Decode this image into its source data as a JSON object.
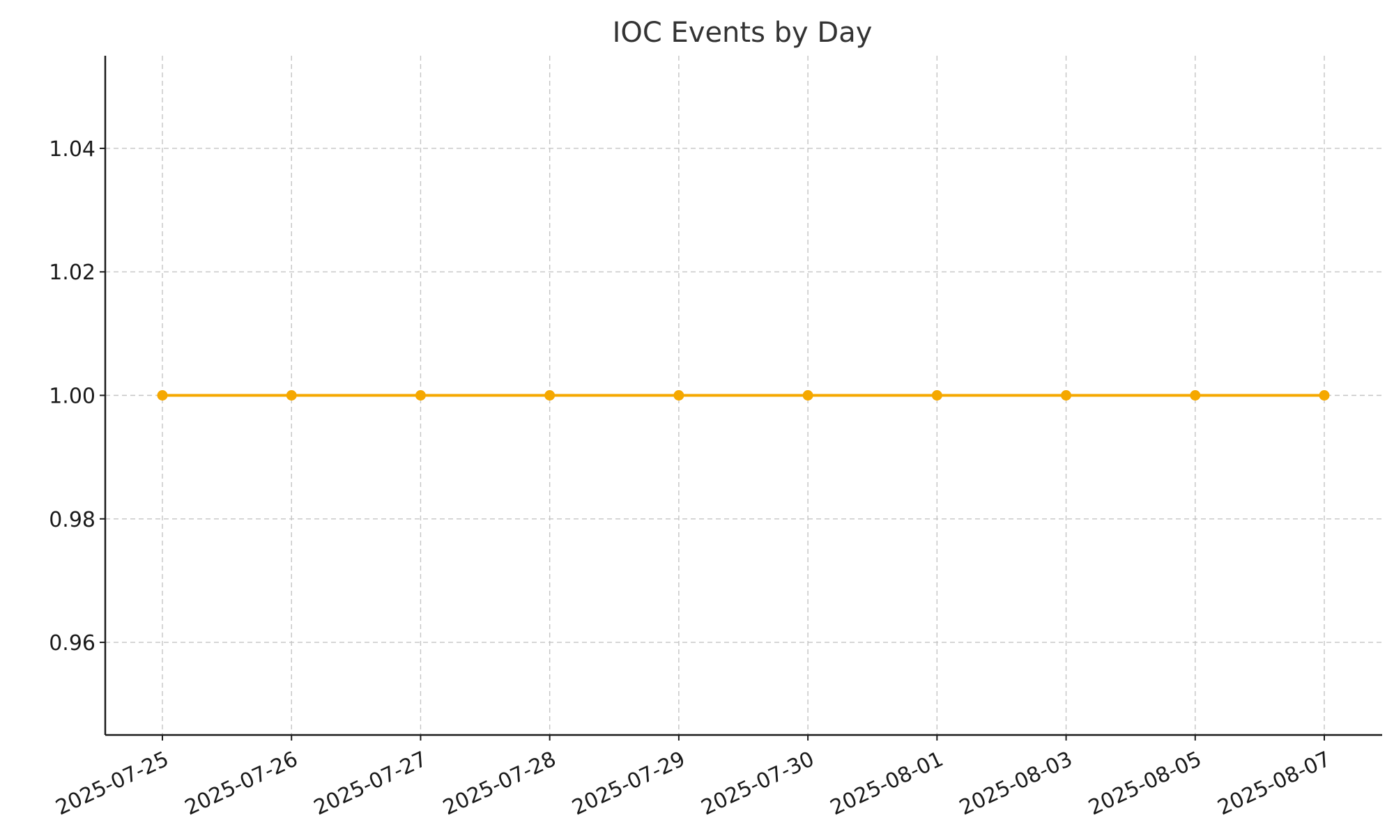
{
  "chart_data": {
    "type": "line",
    "title": "IOC Events by Day",
    "xlabel": "",
    "ylabel": "",
    "categories": [
      "2025-07-25",
      "2025-07-26",
      "2025-07-27",
      "2025-07-28",
      "2025-07-29",
      "2025-07-30",
      "2025-08-01",
      "2025-08-03",
      "2025-08-05",
      "2025-08-07"
    ],
    "series": [
      {
        "values": [
          1,
          1,
          1,
          1,
          1,
          1,
          1,
          1,
          1,
          1
        ],
        "color": "#F5A800"
      }
    ],
    "ylim": [
      0.945,
      1.055
    ],
    "yticks": [
      "0.96",
      "0.98",
      "1.00",
      "1.02",
      "1.04"
    ],
    "grid": true,
    "legend": "none"
  }
}
